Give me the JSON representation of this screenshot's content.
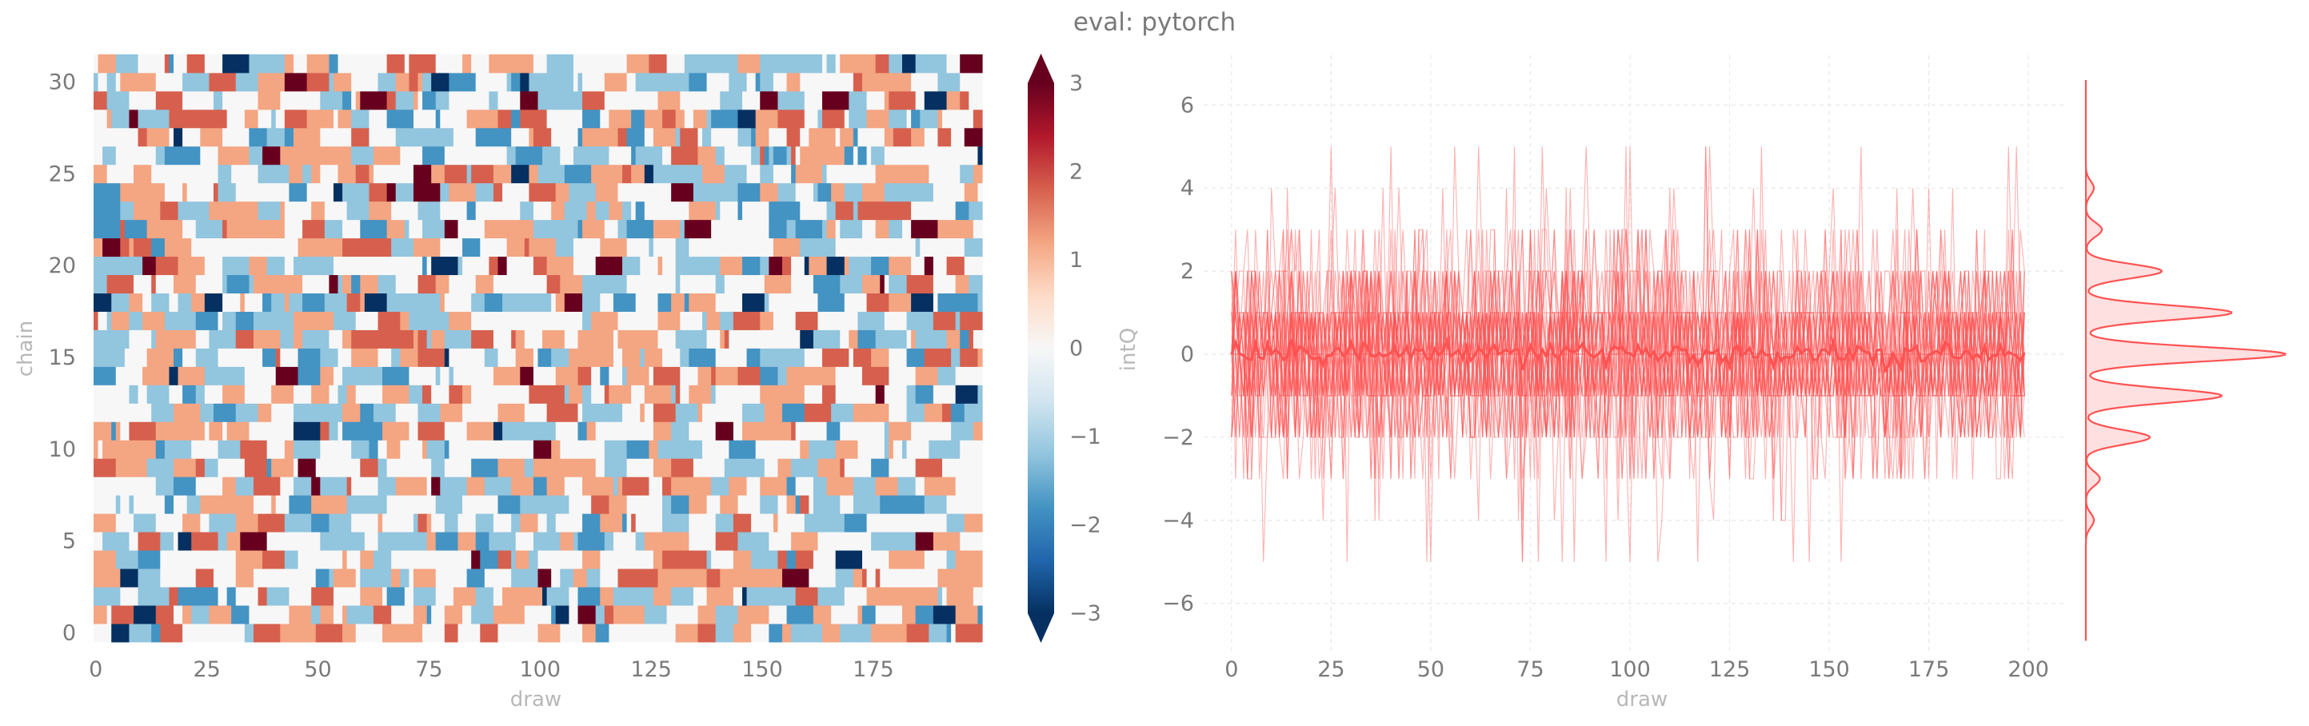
{
  "title": "eval: pytorch",
  "chart_data": [
    {
      "type": "heatmap",
      "xlabel": "draw",
      "ylabel": "chain",
      "xlim": [
        0,
        199
      ],
      "ylim": [
        0,
        31
      ],
      "xticks": [
        0,
        25,
        50,
        75,
        100,
        125,
        150,
        175
      ],
      "yticks": [
        0,
        5,
        10,
        15,
        20,
        25,
        30
      ],
      "n_draws": 200,
      "n_chains": 32,
      "colorbar": {
        "label": "intQ",
        "min": -3,
        "max": 3,
        "ticks": [
          -3,
          -2,
          -1,
          0,
          1,
          2,
          3
        ],
        "colormap": "RdBu_r",
        "extend": "both",
        "colors": [
          "#053061",
          "#2166ac",
          "#4393c3",
          "#92c5de",
          "#d1e5f0",
          "#f7f7f7",
          "#fddbc7",
          "#f4a582",
          "#d6604d",
          "#b2182b",
          "#67001f"
        ]
      },
      "values_note": "integer topological charge per chain and draw, values in [-3, 3]"
    },
    {
      "type": "line",
      "xlabel": "draw",
      "ylabel": "",
      "xlim": [
        -7,
        209
      ],
      "ylim": [
        -7.2,
        7.2
      ],
      "xticks": [
        0,
        25,
        50,
        75,
        100,
        125,
        150,
        175,
        200
      ],
      "yticks": [
        -6,
        -4,
        -2,
        0,
        2,
        4,
        6
      ],
      "color": "#ff5252",
      "n_chains": 32,
      "n_draws": 200,
      "trace_range": [
        -5,
        6
      ],
      "mean_line": "chain average, stays near 0",
      "marginal": {
        "type": "density",
        "peaks": [
          {
            "x": -4,
            "density": 0.04
          },
          {
            "x": -3,
            "density": 0.07
          },
          {
            "x": -2,
            "density": 0.32
          },
          {
            "x": -1,
            "density": 0.68
          },
          {
            "x": 0,
            "density": 1.0
          },
          {
            "x": 1,
            "density": 0.73
          },
          {
            "x": 2,
            "density": 0.38
          },
          {
            "x": 3,
            "density": 0.08
          },
          {
            "x": 4,
            "density": 0.04
          }
        ]
      }
    }
  ]
}
